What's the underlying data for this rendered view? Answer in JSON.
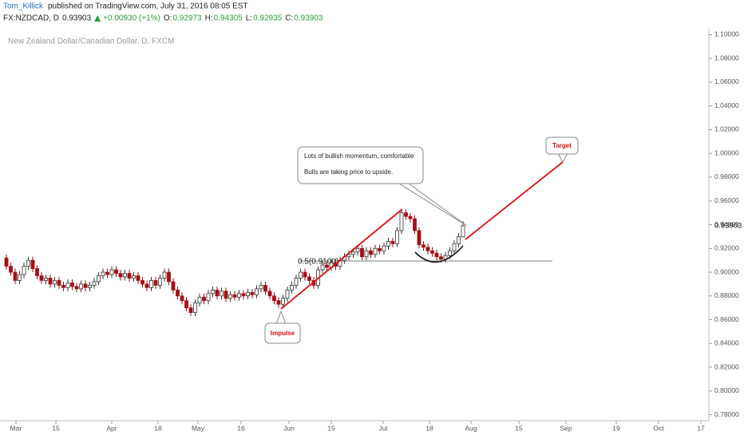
{
  "header": {
    "author": "Tom_Killick",
    "published": "published on TradingView.com, July 31, 2016 08:05 EST",
    "symbol": "FX:NZDCAD, D",
    "change": "+0.00930 (+1%)",
    "ohlc_labels": [
      "O:",
      "H:",
      "L:",
      "C:"
    ]
  },
  "chart_data": {
    "type": "candlestick",
    "title": "New Zealand Dollar/Canadian Dollar, D, FXCM",
    "up_color": "#ffffff",
    "down_color": "#a50f15",
    "outline_color": "#333333",
    "ylim": [
      0.775,
      1.105
    ],
    "yticks": [
      {
        "value": 0.78,
        "label": "0.78000"
      },
      {
        "value": 0.8,
        "label": "0.80000"
      },
      {
        "value": 0.82,
        "label": "0.82000"
      },
      {
        "value": 0.84,
        "label": "0.84000"
      },
      {
        "value": 0.86,
        "label": "0.86000"
      },
      {
        "value": 0.88,
        "label": "0.88000"
      },
      {
        "value": 0.9,
        "label": "0.90000"
      },
      {
        "value": 0.92,
        "label": "0.92000"
      },
      {
        "value": 0.94,
        "label": "0.94000"
      },
      {
        "value": 0.96,
        "label": "0.96000"
      },
      {
        "value": 0.98,
        "label": "0.98000"
      },
      {
        "value": 1.0,
        "label": "1.00000"
      },
      {
        "value": 1.02,
        "label": "1.02000"
      },
      {
        "value": 1.04,
        "label": "1.04000"
      },
      {
        "value": 1.06,
        "label": "1.06000"
      },
      {
        "value": 1.08,
        "label": "1.08000"
      },
      {
        "value": 1.1,
        "label": "1.10000"
      }
    ],
    "xtick_labels": [
      "Mar",
      "15",
      "Apr",
      "18",
      "May",
      "16",
      "Jun",
      "15",
      "Jul",
      "18",
      "Aug",
      "15",
      "Sep",
      "19",
      "Oct",
      "17"
    ],
    "ohlc": [
      [
        0.912,
        0.915,
        0.902,
        0.905
      ],
      [
        0.905,
        0.908,
        0.897,
        0.9
      ],
      [
        0.9,
        0.903,
        0.89,
        0.893
      ],
      [
        0.893,
        0.901,
        0.89,
        0.898
      ],
      [
        0.898,
        0.908,
        0.895,
        0.905
      ],
      [
        0.905,
        0.913,
        0.902,
        0.91
      ],
      [
        0.91,
        0.913,
        0.9,
        0.903
      ],
      [
        0.903,
        0.906,
        0.894,
        0.897
      ],
      [
        0.897,
        0.9,
        0.89,
        0.893
      ],
      [
        0.893,
        0.898,
        0.89,
        0.895
      ],
      [
        0.895,
        0.898,
        0.887,
        0.89
      ],
      [
        0.89,
        0.896,
        0.887,
        0.893
      ],
      [
        0.893,
        0.896,
        0.886,
        0.889
      ],
      [
        0.889,
        0.892,
        0.884,
        0.887
      ],
      [
        0.887,
        0.894,
        0.884,
        0.891
      ],
      [
        0.891,
        0.894,
        0.885,
        0.888
      ],
      [
        0.888,
        0.891,
        0.883,
        0.886
      ],
      [
        0.886,
        0.893,
        0.883,
        0.89
      ],
      [
        0.89,
        0.893,
        0.884,
        0.887
      ],
      [
        0.887,
        0.892,
        0.884,
        0.889
      ],
      [
        0.889,
        0.895,
        0.886,
        0.892
      ],
      [
        0.892,
        0.9,
        0.889,
        0.897
      ],
      [
        0.897,
        0.903,
        0.894,
        0.9
      ],
      [
        0.9,
        0.903,
        0.895,
        0.898
      ],
      [
        0.898,
        0.905,
        0.895,
        0.902
      ],
      [
        0.902,
        0.905,
        0.896,
        0.899
      ],
      [
        0.899,
        0.902,
        0.893,
        0.896
      ],
      [
        0.896,
        0.902,
        0.893,
        0.899
      ],
      [
        0.899,
        0.902,
        0.892,
        0.895
      ],
      [
        0.895,
        0.9,
        0.892,
        0.897
      ],
      [
        0.897,
        0.9,
        0.89,
        0.893
      ],
      [
        0.893,
        0.896,
        0.887,
        0.89
      ],
      [
        0.89,
        0.893,
        0.884,
        0.887
      ],
      [
        0.887,
        0.896,
        0.884,
        0.893
      ],
      [
        0.893,
        0.896,
        0.886,
        0.889
      ],
      [
        0.889,
        0.898,
        0.886,
        0.895
      ],
      [
        0.895,
        0.903,
        0.892,
        0.9
      ],
      [
        0.9,
        0.903,
        0.889,
        0.892
      ],
      [
        0.892,
        0.895,
        0.882,
        0.885
      ],
      [
        0.885,
        0.888,
        0.877,
        0.88
      ],
      [
        0.88,
        0.883,
        0.873,
        0.876
      ],
      [
        0.876,
        0.879,
        0.867,
        0.87
      ],
      [
        0.87,
        0.873,
        0.863,
        0.866
      ],
      [
        0.866,
        0.877,
        0.863,
        0.874
      ],
      [
        0.874,
        0.882,
        0.871,
        0.879
      ],
      [
        0.879,
        0.882,
        0.873,
        0.876
      ],
      [
        0.876,
        0.885,
        0.873,
        0.882
      ],
      [
        0.882,
        0.888,
        0.879,
        0.885
      ],
      [
        0.885,
        0.888,
        0.877,
        0.88
      ],
      [
        0.88,
        0.887,
        0.877,
        0.884
      ],
      [
        0.884,
        0.887,
        0.875,
        0.878
      ],
      [
        0.878,
        0.884,
        0.875,
        0.881
      ],
      [
        0.881,
        0.884,
        0.876,
        0.879
      ],
      [
        0.879,
        0.885,
        0.876,
        0.882
      ],
      [
        0.882,
        0.885,
        0.877,
        0.88
      ],
      [
        0.88,
        0.886,
        0.877,
        0.883
      ],
      [
        0.883,
        0.886,
        0.878,
        0.881
      ],
      [
        0.881,
        0.889,
        0.878,
        0.886
      ],
      [
        0.886,
        0.892,
        0.883,
        0.889
      ],
      [
        0.889,
        0.892,
        0.881,
        0.884
      ],
      [
        0.884,
        0.887,
        0.877,
        0.88
      ],
      [
        0.88,
        0.883,
        0.873,
        0.876
      ],
      [
        0.876,
        0.879,
        0.87,
        0.873
      ],
      [
        0.873,
        0.881,
        0.87,
        0.878
      ],
      [
        0.878,
        0.888,
        0.875,
        0.885
      ],
      [
        0.885,
        0.892,
        0.882,
        0.889
      ],
      [
        0.889,
        0.898,
        0.886,
        0.895
      ],
      [
        0.895,
        0.903,
        0.892,
        0.9
      ],
      [
        0.9,
        0.903,
        0.893,
        0.896
      ],
      [
        0.896,
        0.899,
        0.89,
        0.893
      ],
      [
        0.893,
        0.896,
        0.886,
        0.889
      ],
      [
        0.889,
        0.905,
        0.886,
        0.902
      ],
      [
        0.902,
        0.909,
        0.899,
        0.906
      ],
      [
        0.906,
        0.909,
        0.901,
        0.904
      ],
      [
        0.904,
        0.911,
        0.901,
        0.908
      ],
      [
        0.908,
        0.911,
        0.902,
        0.905
      ],
      [
        0.905,
        0.913,
        0.902,
        0.91
      ],
      [
        0.91,
        0.916,
        0.907,
        0.913
      ],
      [
        0.913,
        0.918,
        0.91,
        0.915
      ],
      [
        0.915,
        0.92,
        0.912,
        0.917
      ],
      [
        0.917,
        0.923,
        0.914,
        0.92
      ],
      [
        0.92,
        0.923,
        0.91,
        0.913
      ],
      [
        0.913,
        0.921,
        0.91,
        0.918
      ],
      [
        0.918,
        0.921,
        0.912,
        0.915
      ],
      [
        0.915,
        0.923,
        0.912,
        0.92
      ],
      [
        0.92,
        0.923,
        0.915,
        0.918
      ],
      [
        0.918,
        0.925,
        0.915,
        0.922
      ],
      [
        0.922,
        0.929,
        0.919,
        0.926
      ],
      [
        0.926,
        0.929,
        0.921,
        0.924
      ],
      [
        0.924,
        0.938,
        0.921,
        0.935
      ],
      [
        0.935,
        0.953,
        0.932,
        0.95
      ],
      [
        0.95,
        0.953,
        0.944,
        0.947
      ],
      [
        0.947,
        0.95,
        0.942,
        0.945
      ],
      [
        0.945,
        0.948,
        0.932,
        0.935
      ],
      [
        0.935,
        0.938,
        0.92,
        0.923
      ],
      [
        0.923,
        0.926,
        0.918,
        0.921
      ],
      [
        0.921,
        0.924,
        0.915,
        0.918
      ],
      [
        0.918,
        0.921,
        0.913,
        0.916
      ],
      [
        0.916,
        0.919,
        0.91,
        0.913
      ],
      [
        0.913,
        0.916,
        0.908,
        0.911
      ],
      [
        0.911,
        0.917,
        0.908,
        0.914
      ],
      [
        0.914,
        0.921,
        0.911,
        0.918
      ],
      [
        0.918,
        0.927,
        0.915,
        0.924
      ],
      [
        0.924,
        0.933,
        0.921,
        0.93
      ],
      [
        0.92973,
        0.94305,
        0.92935,
        0.93903
      ]
    ],
    "annotations": {
      "note_lines": [
        "Lots of bullish momentum, comfortable",
        "Bulls are taking price to upside."
      ],
      "impulse": "Impulse",
      "target": "Target",
      "fib": "0.5(0.9100)"
    }
  }
}
